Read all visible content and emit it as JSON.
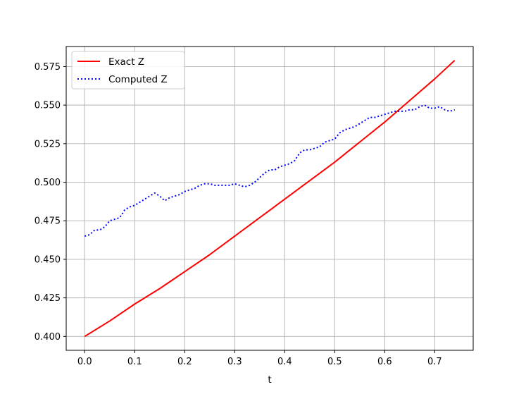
{
  "chart_data": {
    "type": "line",
    "xlabel": "t",
    "ylabel": "",
    "xlim": [
      -0.037,
      0.777
    ],
    "ylim": [
      0.391,
      0.588
    ],
    "xticks": [
      0.0,
      0.1,
      0.2,
      0.3,
      0.4,
      0.5,
      0.6,
      0.7
    ],
    "xtick_labels": [
      "0.0",
      "0.1",
      "0.2",
      "0.3",
      "0.4",
      "0.5",
      "0.6",
      "0.7"
    ],
    "yticks": [
      0.4,
      0.425,
      0.45,
      0.475,
      0.5,
      0.525,
      0.55,
      0.575
    ],
    "ytick_labels": [
      "0.400",
      "0.425",
      "0.450",
      "0.475",
      "0.500",
      "0.525",
      "0.550",
      "0.575"
    ],
    "grid": true,
    "legend_position": "top-left",
    "series": [
      {
        "name": "Exact Z",
        "color": "#ff0000",
        "style": "solid",
        "x": [
          0.0,
          0.05,
          0.1,
          0.15,
          0.2,
          0.25,
          0.3,
          0.35,
          0.4,
          0.45,
          0.5,
          0.55,
          0.6,
          0.65,
          0.7,
          0.74
        ],
        "y": [
          0.4,
          0.41,
          0.421,
          0.431,
          0.442,
          0.453,
          0.465,
          0.477,
          0.489,
          0.501,
          0.513,
          0.526,
          0.539,
          0.553,
          0.567,
          0.579
        ]
      },
      {
        "name": "Computed Z",
        "color": "#0000ff",
        "style": "dotted",
        "x": [
          0.0,
          0.01,
          0.02,
          0.03,
          0.04,
          0.05,
          0.06,
          0.07,
          0.08,
          0.09,
          0.1,
          0.11,
          0.12,
          0.13,
          0.14,
          0.15,
          0.16,
          0.17,
          0.18,
          0.19,
          0.2,
          0.21,
          0.22,
          0.23,
          0.24,
          0.25,
          0.26,
          0.27,
          0.28,
          0.29,
          0.3,
          0.31,
          0.32,
          0.33,
          0.34,
          0.35,
          0.36,
          0.37,
          0.38,
          0.39,
          0.4,
          0.41,
          0.42,
          0.43,
          0.44,
          0.45,
          0.46,
          0.47,
          0.48,
          0.49,
          0.5,
          0.51,
          0.52,
          0.53,
          0.54,
          0.55,
          0.56,
          0.57,
          0.58,
          0.59,
          0.6,
          0.61,
          0.62,
          0.63,
          0.64,
          0.65,
          0.66,
          0.67,
          0.68,
          0.69,
          0.7,
          0.71,
          0.72,
          0.73,
          0.74
        ],
        "y": [
          0.465,
          0.466,
          0.469,
          0.469,
          0.471,
          0.475,
          0.476,
          0.477,
          0.482,
          0.484,
          0.485,
          0.487,
          0.489,
          0.491,
          0.493,
          0.491,
          0.488,
          0.49,
          0.491,
          0.492,
          0.494,
          0.495,
          0.496,
          0.498,
          0.499,
          0.499,
          0.498,
          0.498,
          0.498,
          0.498,
          0.499,
          0.498,
          0.497,
          0.498,
          0.5,
          0.503,
          0.506,
          0.508,
          0.508,
          0.51,
          0.511,
          0.512,
          0.514,
          0.519,
          0.521,
          0.521,
          0.522,
          0.523,
          0.526,
          0.527,
          0.528,
          0.532,
          0.534,
          0.535,
          0.536,
          0.538,
          0.54,
          0.542,
          0.542,
          0.543,
          0.544,
          0.545,
          0.546,
          0.546,
          0.546,
          0.547,
          0.547,
          0.549,
          0.55,
          0.548,
          0.548,
          0.549,
          0.547,
          0.546,
          0.547
        ]
      }
    ]
  }
}
